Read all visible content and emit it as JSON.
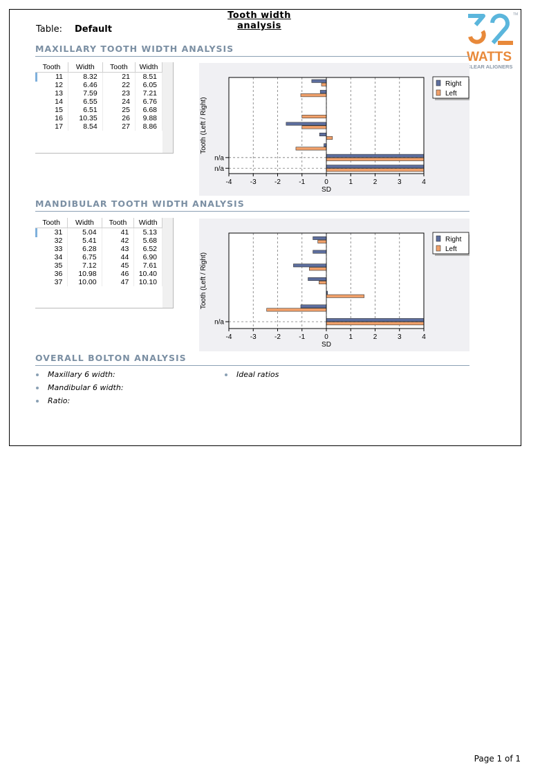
{
  "report": {
    "title": "Tooth width analysis",
    "table_label": "Table:",
    "table_value": "Default",
    "page": "Page 1 of 1"
  },
  "logo": {
    "wordmark": "WATTS",
    "tagline": "CLEAR ALIGNERS",
    "tm": "TM",
    "colors": {
      "blue": "#5bb6dc",
      "orange": "#e8893a",
      "gray": "#8a98a8"
    }
  },
  "maxillary": {
    "heading": "MAXILLARY TOOTH WIDTH ANALYSIS",
    "columns": [
      "Tooth",
      "Width",
      "Tooth",
      "Width"
    ],
    "rows": [
      [
        "11",
        "8.32",
        "21",
        "8.51"
      ],
      [
        "12",
        "6.46",
        "22",
        "6.05"
      ],
      [
        "13",
        "7.59",
        "23",
        "7.21"
      ],
      [
        "14",
        "6.55",
        "24",
        "6.76"
      ],
      [
        "15",
        "6.51",
        "25",
        "6.68"
      ],
      [
        "16",
        "10.35",
        "26",
        "9.88"
      ],
      [
        "17",
        "8.54",
        "27",
        "8.86"
      ]
    ]
  },
  "mandibular": {
    "heading": "MANDIBULAR TOOTH WIDTH ANALYSIS",
    "columns": [
      "Tooth",
      "Width",
      "Tooth",
      "Width"
    ],
    "rows": [
      [
        "31",
        "5.04",
        "41",
        "5.13"
      ],
      [
        "32",
        "5.41",
        "42",
        "5.68"
      ],
      [
        "33",
        "6.28",
        "43",
        "6.52"
      ],
      [
        "34",
        "6.75",
        "44",
        "6.90"
      ],
      [
        "35",
        "7.12",
        "45",
        "7.61"
      ],
      [
        "36",
        "10.98",
        "46",
        "10.40"
      ],
      [
        "37",
        "10.00",
        "47",
        "10.10"
      ]
    ]
  },
  "bolton": {
    "heading": "OVERALL BOLTON ANALYSIS",
    "items_left": [
      "Maxillary 6 width:",
      "Mandibular 6 width:",
      "Ratio:"
    ],
    "items_right": [
      "Ideal ratios"
    ]
  },
  "chart_data": [
    {
      "type": "bar",
      "orientation": "horizontal",
      "xlabel": "SD",
      "ylabel": "Tooth (Left / Right)",
      "xlim": [
        -4,
        4
      ],
      "xticks": [
        -4,
        -3,
        -2,
        -1,
        0,
        1,
        2,
        3,
        4
      ],
      "grid": true,
      "legend_position": "top-right",
      "row_labels": [
        "",
        "",
        "",
        "",
        "",
        "",
        "",
        "n/a",
        "n/a"
      ],
      "series": [
        {
          "name": "Right",
          "color": "#5d6e9e",
          "values": [
            -0.6,
            -0.25,
            0,
            0,
            -1.65,
            -0.28,
            -0.1,
            4.1,
            4.1
          ]
        },
        {
          "name": "Left",
          "color": "#f0a06a",
          "values": [
            -0.2,
            -1.05,
            0,
            -1.0,
            -1.0,
            0.25,
            -1.25,
            4.1,
            4.1
          ]
        }
      ]
    },
    {
      "type": "bar",
      "orientation": "horizontal",
      "xlabel": "SD",
      "ylabel": "Tooth (Left / Right)",
      "xlim": [
        -4,
        4
      ],
      "xticks": [
        -4,
        -3,
        -2,
        -1,
        0,
        1,
        2,
        3,
        4
      ],
      "grid": true,
      "legend_position": "top-right",
      "row_labels": [
        "",
        "",
        "",
        "",
        "",
        "",
        "n/a"
      ],
      "series": [
        {
          "name": "Right",
          "color": "#5d6e9e",
          "values": [
            -0.55,
            -0.55,
            -1.35,
            -0.75,
            0.05,
            -1.05,
            4.1
          ]
        },
        {
          "name": "Left",
          "color": "#f0a06a",
          "values": [
            -0.35,
            0,
            -0.7,
            -0.3,
            1.55,
            -2.45,
            4.1
          ]
        }
      ]
    }
  ]
}
